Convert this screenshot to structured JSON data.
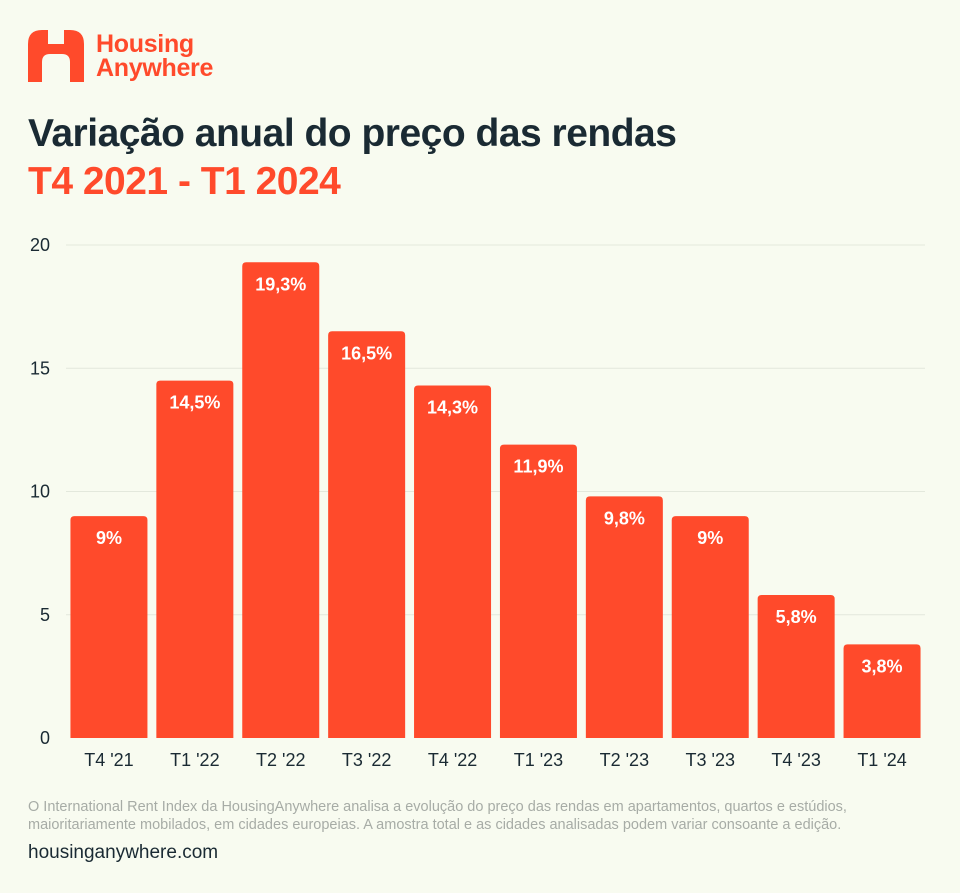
{
  "brand": {
    "name_line1": "Housing",
    "name_line2": "Anywhere",
    "color": "#ff4a2b"
  },
  "title": "Variação anual do preço das rendas",
  "subtitle": "T4 2021 - T1 2024",
  "chart_data": {
    "type": "bar",
    "categories": [
      "T4 '21",
      "T1 '22",
      "T2 '22",
      "T3 '22",
      "T4 '22",
      "T1 '23",
      "T2 '23",
      "T3 '23",
      "T4 '23",
      "T1 '24"
    ],
    "values": [
      9,
      14.5,
      19.3,
      16.5,
      14.3,
      11.9,
      9.8,
      9,
      5.8,
      3.8
    ],
    "data_labels": [
      "9%",
      "14,5%",
      "19,3%",
      "16,5%",
      "14,3%",
      "11,9%",
      "9,8%",
      "9%",
      "5,8%",
      "3,8%"
    ],
    "ylim": [
      0,
      20
    ],
    "yticks": [
      0,
      5,
      10,
      15,
      20
    ],
    "grid": true,
    "bar_color": "#ff4a2b",
    "label_color": "#ffffff"
  },
  "footnote": "O International Rent Index da HousingAnywhere analisa a evolução do preço das rendas em apartamentos, quartos e estúdios, maioritariamente mobilados, em cidades europeias. A amostra total e as cidades analisadas podem variar consoante a edição.",
  "website": "housinganywhere.com"
}
